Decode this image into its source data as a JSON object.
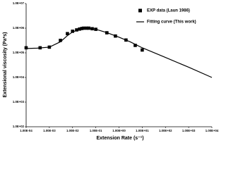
{
  "chart_data": {
    "type": "scatter",
    "x_label": "Extension Rate (s⁻¹)",
    "y_label": "Extensional viscosity (Pa*s)",
    "x_log": true,
    "y_log": true,
    "xlim": [
      0.0001,
      10000
    ],
    "ylim": [
      100,
      10000000
    ],
    "xticks": [
      {
        "value": 0.0001,
        "label": "1.00E-04"
      },
      {
        "value": 0.001,
        "label": "1.00E-03"
      },
      {
        "value": 0.01,
        "label": "1.00E-02"
      },
      {
        "value": 0.1,
        "label": "1.00E-01"
      },
      {
        "value": 1,
        "label": "1.00E+00"
      },
      {
        "value": 10,
        "label": "1.00E+01"
      },
      {
        "value": 100,
        "label": "1.00E+02"
      },
      {
        "value": 1000,
        "label": "1.00E+03"
      },
      {
        "value": 10000,
        "label": "1.00E+04"
      }
    ],
    "yticks": [
      {
        "value": 100,
        "label": "1.0E+02"
      },
      {
        "value": 1000,
        "label": "1.0E+03"
      },
      {
        "value": 10000,
        "label": "1.0E+04"
      },
      {
        "value": 100000,
        "label": "1.0E+05"
      },
      {
        "value": 1000000,
        "label": "1.0E+06"
      },
      {
        "value": 10000000,
        "label": "1.0E+07"
      }
    ],
    "legend_position": "upper right",
    "series": [
      {
        "name": "EXP data (Laun 1986)",
        "color": "#000000",
        "style": "marker",
        "x": [
          0.0001,
          0.0004,
          0.001,
          0.003,
          0.006,
          0.01,
          0.015,
          0.02,
          0.025,
          0.03,
          0.04,
          0.05,
          0.07,
          0.1,
          0.3,
          0.7,
          2,
          5,
          10
        ],
        "values": [
          160000,
          160000,
          170000,
          320000,
          600000,
          750000,
          850000,
          920000,
          970000,
          1000000,
          1000000,
          1000000,
          950000,
          900000,
          650000,
          480000,
          330000,
          200000,
          130000
        ]
      },
      {
        "name": "Fitting curve (This work)",
        "color": "#000000",
        "style": "line",
        "x": [
          0.0001,
          0.0003,
          0.001,
          0.003,
          0.006,
          0.01,
          0.02,
          0.04,
          0.07,
          0.1,
          0.3,
          1,
          3,
          10,
          100,
          1000,
          10000
        ],
        "values": [
          150000,
          155000,
          170000,
          280000,
          500000,
          700000,
          900000,
          1000000,
          960000,
          900000,
          660000,
          430000,
          280000,
          160000,
          65000,
          26000,
          10000
        ]
      }
    ]
  }
}
